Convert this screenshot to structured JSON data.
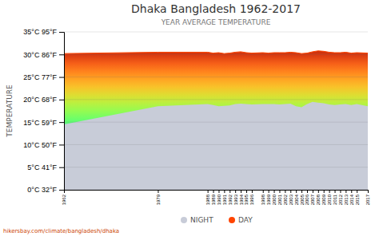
{
  "chart_data": {
    "type": "area",
    "title": "Dhaka Bangladesh 1962-2017",
    "subtitle": "YEAR AVERAGE TEMPERATURE",
    "y_label": "TEMPERATURE",
    "x": [
      1962,
      1979,
      1988,
      1989,
      1990,
      1991,
      1992,
      1993,
      1994,
      1995,
      1996,
      1998,
      1999,
      2000,
      2001,
      2002,
      2003,
      2004,
      2005,
      2006,
      2007,
      2008,
      2009,
      2010,
      2011,
      2012,
      2013,
      2014,
      2015,
      2017
    ],
    "series": [
      {
        "name": "NIGHT",
        "color": "#c8ccd8",
        "values": [
          14.5,
          18.5,
          19.0,
          18.8,
          18.5,
          18.6,
          18.7,
          19.0,
          19.1,
          19.0,
          18.9,
          19.0,
          19.0,
          19.0,
          18.9,
          19.0,
          19.1,
          18.5,
          18.3,
          19.0,
          19.5,
          19.3,
          19.2,
          18.9,
          18.8,
          18.9,
          19.0,
          18.8,
          19.0,
          18.5
        ]
      },
      {
        "name": "DAY",
        "color": "#ff4400",
        "values": [
          30.2,
          30.5,
          30.5,
          30.3,
          30.4,
          30.2,
          30.3,
          30.5,
          30.6,
          30.4,
          30.3,
          30.4,
          30.3,
          30.4,
          30.4,
          30.4,
          30.5,
          30.4,
          30.2,
          30.3,
          30.6,
          30.8,
          30.7,
          30.5,
          30.4,
          30.4,
          30.5,
          30.3,
          30.4,
          30.3
        ]
      }
    ],
    "xlim": [
      1962,
      2017
    ],
    "xticks": [
      1962,
      1979,
      1988,
      1989,
      1990,
      1991,
      1992,
      1993,
      1994,
      1995,
      1996,
      1998,
      1999,
      2000,
      2001,
      2002,
      2003,
      2004,
      2005,
      2006,
      2007,
      2008,
      2009,
      2010,
      2011,
      2012,
      2013,
      2014,
      2015,
      2017
    ],
    "ylim": [
      0,
      35
    ],
    "yticks": [
      {
        "value": 0,
        "label": "0°C 32°F"
      },
      {
        "value": 5,
        "label": "5°C 41°F"
      },
      {
        "value": 10,
        "label": "10°C 50°F"
      },
      {
        "value": 15,
        "label": "15°C 59°F"
      },
      {
        "value": 20,
        "label": "20°C 68°F"
      },
      {
        "value": 25,
        "label": "25°C 77°F"
      },
      {
        "value": 30,
        "label": "30°C 86°F"
      },
      {
        "value": 35,
        "label": "35°C 95°F"
      }
    ],
    "grid": true,
    "legend": "bottom",
    "annotations": [
      "hikersbay.com/climate/bangladesh/dhaka"
    ]
  }
}
